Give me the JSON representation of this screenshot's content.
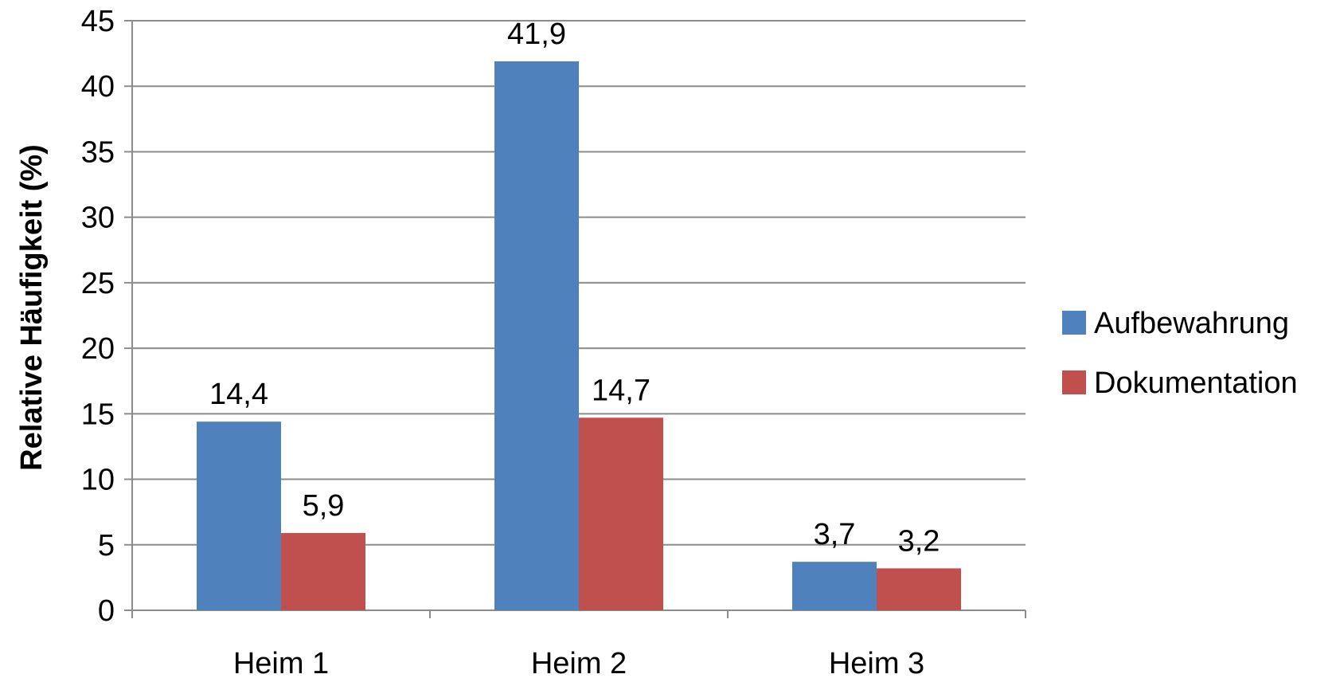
{
  "chart_data": {
    "type": "bar",
    "title": "",
    "xlabel": "",
    "ylabel": "Relative Häufigkeit (%)",
    "categories": [
      "Heim 1",
      "Heim 2",
      "Heim 3"
    ],
    "series": [
      {
        "name": "Aufbewahrung",
        "color": "#4F81BD",
        "values": [
          14.4,
          41.9,
          3.7
        ],
        "labels": [
          "14,4",
          "41,9",
          "3,7"
        ]
      },
      {
        "name": "Dokumentation",
        "color": "#C0504D",
        "values": [
          5.9,
          14.7,
          3.2
        ],
        "labels": [
          "5,9",
          "14,7",
          "3,2"
        ]
      }
    ],
    "ylim": [
      0,
      45
    ],
    "yticks": [
      0,
      5,
      10,
      15,
      20,
      25,
      30,
      35,
      40,
      45
    ],
    "grid": true,
    "gridColor": "#8C8C8C",
    "legend": "right"
  }
}
